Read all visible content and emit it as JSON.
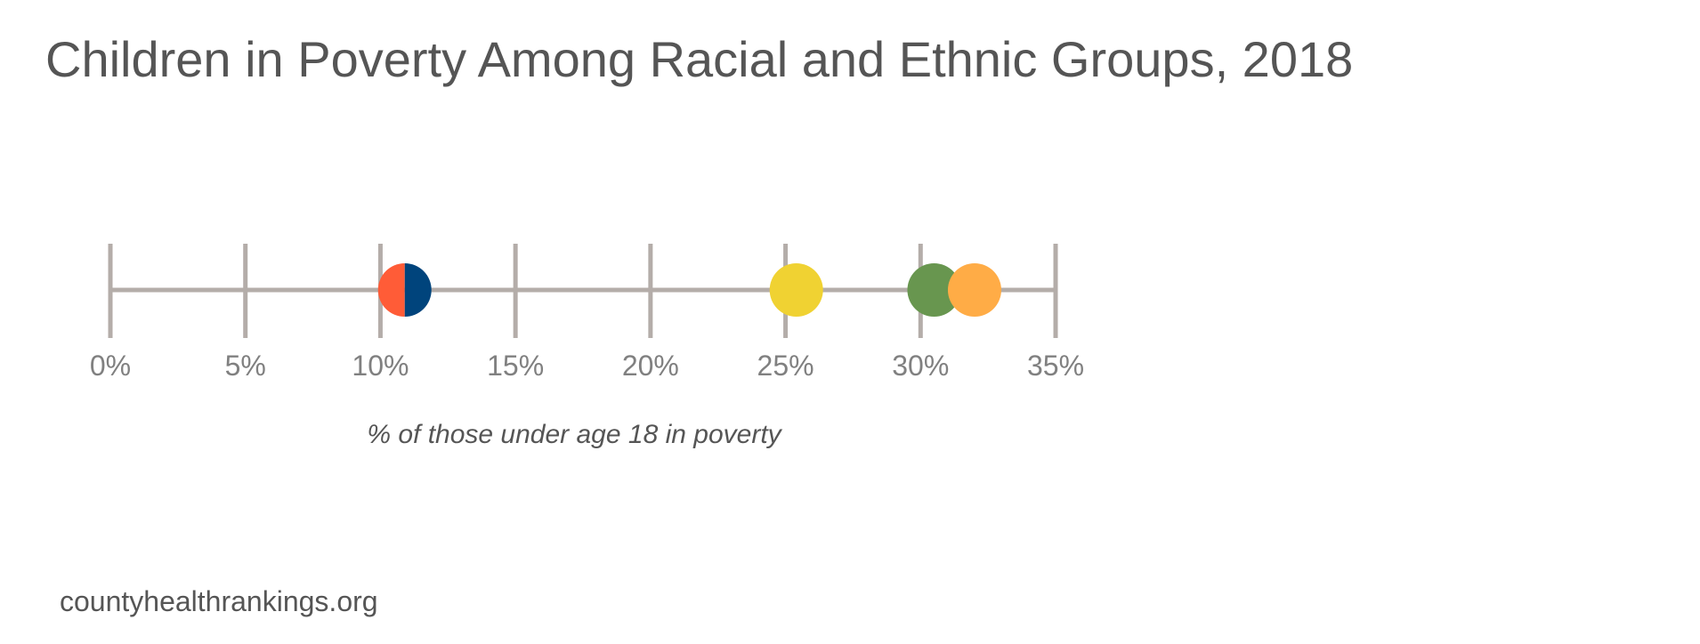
{
  "chart_data": {
    "type": "scatter",
    "title": "Children in Poverty Among Racial and Ethnic Groups, 2018",
    "xlabel": "% of those under age 18 in poverty",
    "ylabel": "",
    "xlim": [
      0,
      35
    ],
    "xticks": [
      0,
      5,
      10,
      15,
      20,
      25,
      30,
      35
    ],
    "xtick_labels": [
      "0%",
      "5%",
      "10%",
      "15%",
      "20%",
      "25%",
      "30%",
      "35%"
    ],
    "grid": false,
    "legend": "none",
    "series": [
      {
        "values": [
          10.9
        ],
        "color": "#FF5C37",
        "marker": "left-half-circle"
      },
      {
        "values": [
          10.9
        ],
        "color": "#00447C",
        "marker": "right-half-circle"
      },
      {
        "values": [
          25.4
        ],
        "color": "#F0D232",
        "marker": "circle"
      },
      {
        "values": [
          30.5
        ],
        "color": "#68964F",
        "marker": "circle"
      },
      {
        "values": [
          32.0
        ],
        "color": "#FFAC46",
        "marker": "circle"
      }
    ],
    "axis_color": "#B4ADA9"
  },
  "source": "countyhealthrankings.org"
}
